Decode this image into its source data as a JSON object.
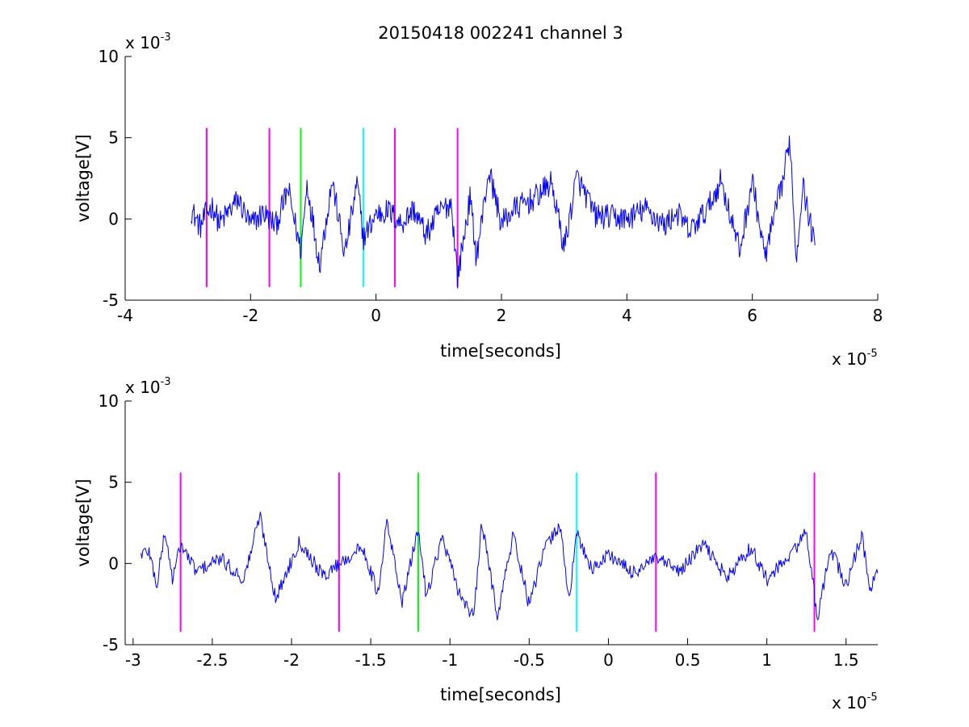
{
  "chart_data": [
    {
      "type": "line",
      "title": "20150418 002241 channel 3",
      "xlabel": "time[seconds]",
      "ylabel": "voltage[V]",
      "x_multiplier": {
        "base": "x 10",
        "exponent": "-5"
      },
      "y_multiplier": {
        "base": "x 10",
        "exponent": "-3"
      },
      "xlim": [
        -4,
        8
      ],
      "ylim": [
        -5,
        10
      ],
      "x_ticks": [
        -4,
        -2,
        0,
        2,
        4,
        6,
        8
      ],
      "y_ticks": [
        -5,
        0,
        5,
        10
      ],
      "x_tick_labels": [
        "-4",
        "-2",
        "0",
        "2",
        "4",
        "6",
        "8"
      ],
      "y_tick_labels": [
        "-5",
        "0",
        "5",
        "10"
      ],
      "grid": false,
      "legend": "none",
      "signal": {
        "color": "#0000ff",
        "x_range": [
          -2.95,
          7.0
        ],
        "shape_points": [
          [
            -2.95,
            0.6
          ],
          [
            -2.8,
            -0.5
          ],
          [
            -2.7,
            0.4
          ],
          [
            -2.6,
            0.8
          ],
          [
            -2.5,
            -0.3
          ],
          [
            -2.2,
            1.2
          ],
          [
            -2.0,
            -0.4
          ],
          [
            -1.8,
            0.4
          ],
          [
            -1.6,
            -0.4
          ],
          [
            -1.4,
            1.8
          ],
          [
            -1.2,
            -2.0
          ],
          [
            -1.1,
            2.2
          ],
          [
            -0.9,
            -2.8
          ],
          [
            -0.7,
            2.4
          ],
          [
            -0.5,
            -2.2
          ],
          [
            -0.3,
            2.2
          ],
          [
            -0.2,
            -1.2
          ],
          [
            0.0,
            0.3
          ],
          [
            0.2,
            0.5
          ],
          [
            0.4,
            -0.3
          ],
          [
            0.6,
            0.6
          ],
          [
            0.8,
            -1.0
          ],
          [
            1.0,
            0.4
          ],
          [
            1.2,
            1.0
          ],
          [
            1.3,
            -3.6
          ],
          [
            1.5,
            1.3
          ],
          [
            1.6,
            -2.4
          ],
          [
            1.8,
            3.0
          ],
          [
            2.0,
            -0.3
          ],
          [
            2.2,
            0.6
          ],
          [
            2.5,
            1.2
          ],
          [
            2.8,
            2.2
          ],
          [
            3.0,
            -1.8
          ],
          [
            3.2,
            2.6
          ],
          [
            3.5,
            0.2
          ],
          [
            4.0,
            0.0
          ],
          [
            4.3,
            0.6
          ],
          [
            4.6,
            -0.4
          ],
          [
            4.8,
            0.4
          ],
          [
            5.0,
            -0.8
          ],
          [
            5.3,
            0.7
          ],
          [
            5.5,
            2.4
          ],
          [
            5.8,
            -2.0
          ],
          [
            6.0,
            2.4
          ],
          [
            6.2,
            -2.4
          ],
          [
            6.5,
            2.6
          ],
          [
            6.6,
            5.0
          ],
          [
            6.7,
            -2.6
          ],
          [
            6.8,
            2.2
          ],
          [
            7.0,
            -1.8
          ]
        ]
      },
      "markers": [
        {
          "x": -2.7,
          "color": "#ff00ff"
        },
        {
          "x": -1.7,
          "color": "#ff00ff"
        },
        {
          "x": -1.2,
          "color": "#00ff00"
        },
        {
          "x": -0.2,
          "color": "#00ffff"
        },
        {
          "x": 0.3,
          "color": "#ff00ff"
        },
        {
          "x": 1.3,
          "color": "#ff00ff"
        }
      ],
      "marker_ylim": [
        -4.2,
        5.6
      ]
    },
    {
      "type": "line",
      "xlabel": "time[seconds]",
      "ylabel": "voltage[V]",
      "x_multiplier": {
        "base": "x 10",
        "exponent": "-5"
      },
      "y_multiplier": {
        "base": "x 10",
        "exponent": "-3"
      },
      "xlim": [
        -3.05,
        1.7
      ],
      "ylim": [
        -5,
        10
      ],
      "x_ticks": [
        -3,
        -2.5,
        -2,
        -1.5,
        -1,
        -0.5,
        0,
        0.5,
        1,
        1.5
      ],
      "y_ticks": [
        -5,
        0,
        5,
        10
      ],
      "x_tick_labels": [
        "-3",
        "-2.5",
        "-2",
        "-1.5",
        "-1",
        "-0.5",
        "0",
        "0.5",
        "1",
        "1.5"
      ],
      "y_tick_labels": [
        "-5",
        "0",
        "5",
        "10"
      ],
      "grid": false,
      "legend": "none",
      "signal": {
        "color": "#0000ff",
        "x_range": [
          -2.95,
          1.7
        ],
        "shape_points": [
          [
            -2.95,
            0.6
          ],
          [
            -2.9,
            0.8
          ],
          [
            -2.85,
            -1.4
          ],
          [
            -2.8,
            2.0
          ],
          [
            -2.75,
            -1.0
          ],
          [
            -2.7,
            1.2
          ],
          [
            -2.6,
            -0.5
          ],
          [
            -2.45,
            0.3
          ],
          [
            -2.3,
            -1.0
          ],
          [
            -2.2,
            3.0
          ],
          [
            -2.1,
            -2.2
          ],
          [
            -1.95,
            1.4
          ],
          [
            -1.8,
            -0.8
          ],
          [
            -1.7,
            0.0
          ],
          [
            -1.55,
            1.0
          ],
          [
            -1.45,
            -2.0
          ],
          [
            -1.4,
            2.6
          ],
          [
            -1.3,
            -2.4
          ],
          [
            -1.2,
            2.2
          ],
          [
            -1.15,
            -2.0
          ],
          [
            -1.05,
            1.6
          ],
          [
            -0.95,
            -1.6
          ],
          [
            -0.85,
            -3.4
          ],
          [
            -0.8,
            2.5
          ],
          [
            -0.7,
            -3.2
          ],
          [
            -0.6,
            1.8
          ],
          [
            -0.5,
            -2.6
          ],
          [
            -0.4,
            1.0
          ],
          [
            -0.3,
            2.4
          ],
          [
            -0.25,
            -2.4
          ],
          [
            -0.2,
            1.8
          ],
          [
            -0.1,
            -0.4
          ],
          [
            0.0,
            0.6
          ],
          [
            0.15,
            -0.6
          ],
          [
            0.3,
            0.3
          ],
          [
            0.45,
            -0.5
          ],
          [
            0.6,
            1.2
          ],
          [
            0.75,
            -0.9
          ],
          [
            0.9,
            1.0
          ],
          [
            1.0,
            -1.0
          ],
          [
            1.15,
            0.5
          ],
          [
            1.25,
            2.0
          ],
          [
            1.32,
            -3.6
          ],
          [
            1.4,
            1.0
          ],
          [
            1.5,
            -1.4
          ],
          [
            1.6,
            1.8
          ],
          [
            1.65,
            -1.6
          ],
          [
            1.7,
            -0.6
          ]
        ]
      },
      "markers": [
        {
          "x": -2.7,
          "color": "#ff00ff"
        },
        {
          "x": -1.7,
          "color": "#ff00ff"
        },
        {
          "x": -1.2,
          "color": "#00ff00"
        },
        {
          "x": -0.2,
          "color": "#00ffff"
        },
        {
          "x": 0.3,
          "color": "#ff00ff"
        },
        {
          "x": 1.3,
          "color": "#ff00ff"
        }
      ],
      "marker_ylim": [
        -4.2,
        5.6
      ]
    }
  ]
}
